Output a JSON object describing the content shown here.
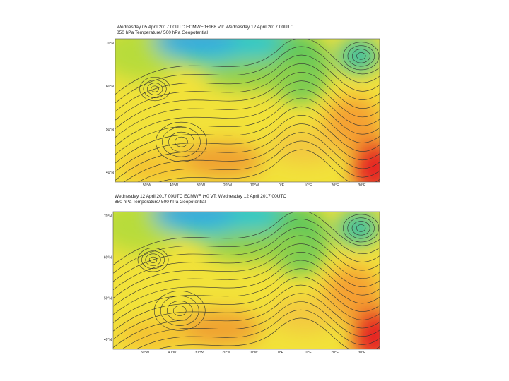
{
  "maps": [
    {
      "title": "Wednesday 05 April 2017 00UTC ECMWF t+168 VT: Wednesday 12 April 2017 00UTC",
      "subtitle": "850 hPa Temperature/ 500 hPa Geopotential",
      "lat_labels": [
        "70°N",
        "60°N",
        "50°N",
        "40°N"
      ],
      "lon_labels": [
        "50°W",
        "40°W",
        "30°W",
        "20°W",
        "10°W",
        "0°E",
        "10°E",
        "20°E",
        "30°E"
      ]
    },
    {
      "title": "Wednesday 12 April 2017 00UTC ECMWF t+0 VT: Wednesday 12 April 2017 00UTC",
      "subtitle": "850 hPa Temperature/ 500 hPa Geopotential",
      "lat_labels": [
        "70°N",
        "60°N",
        "50°N",
        "40°N"
      ],
      "lon_labels": [
        "50°W",
        "40°W",
        "30°W",
        "20°W",
        "10°W",
        "0°E",
        "10°E",
        "20°E",
        "30°E"
      ]
    }
  ]
}
